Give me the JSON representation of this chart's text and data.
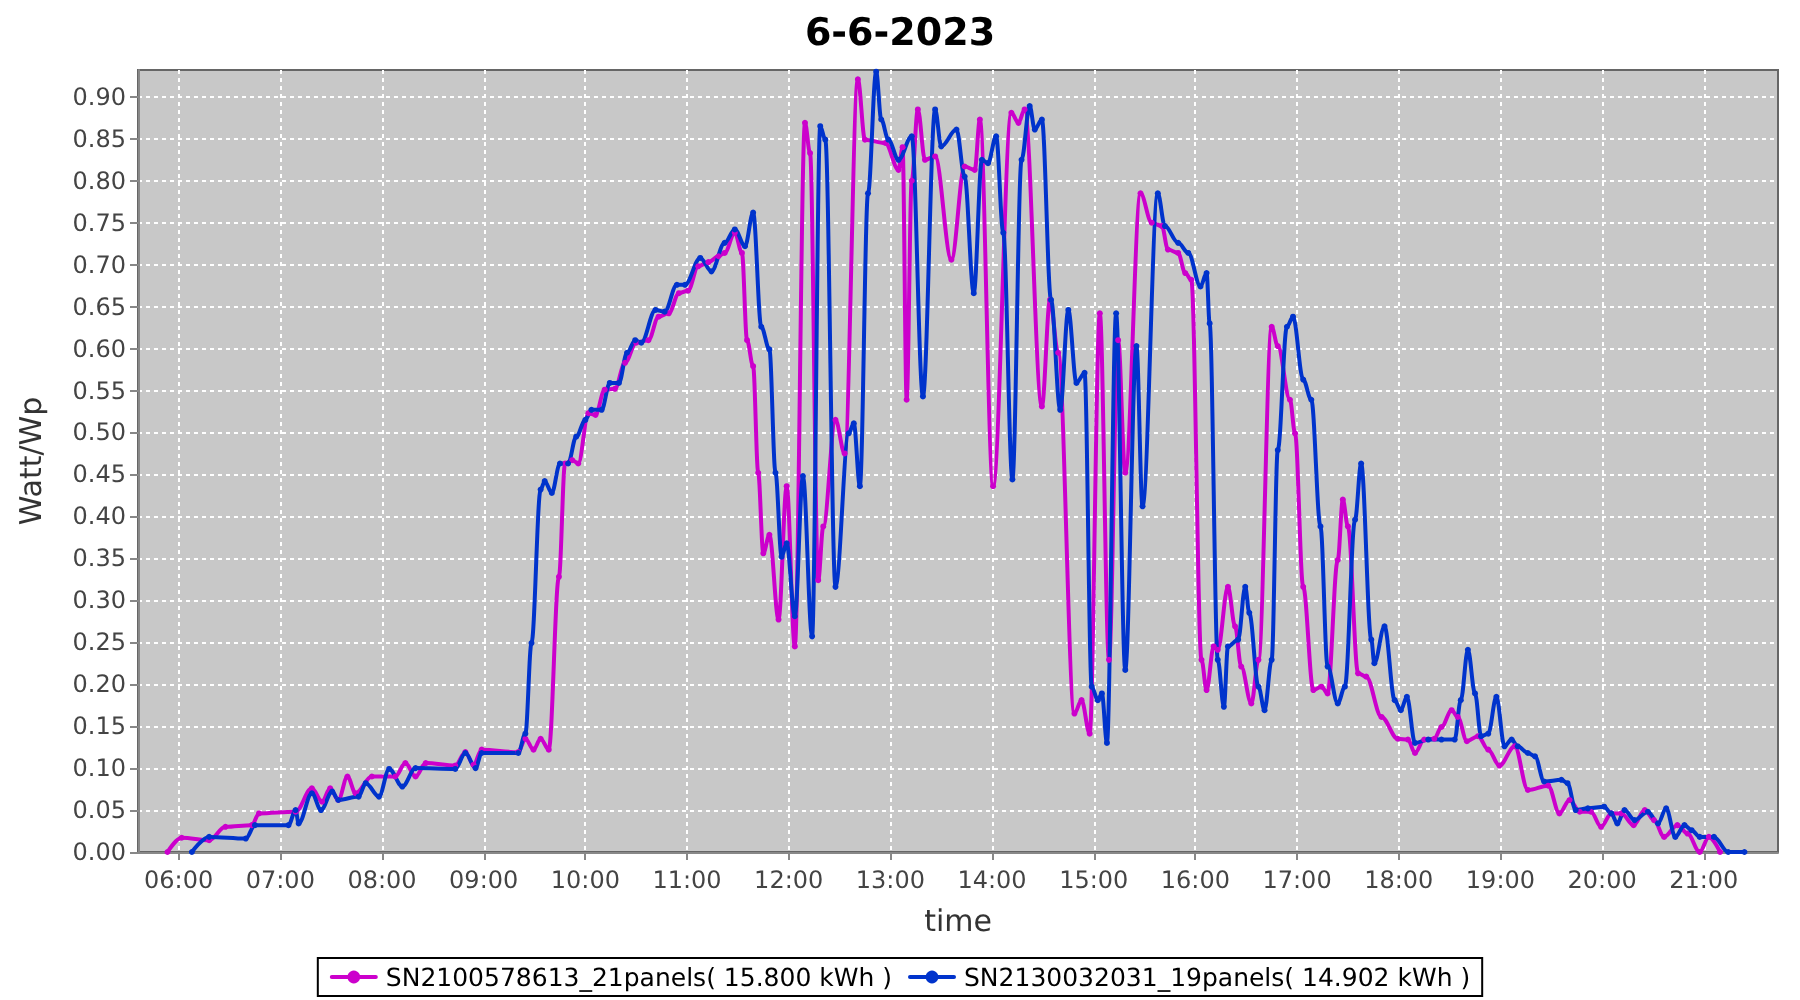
{
  "chart_data": {
    "type": "line",
    "title": "6-6-2023",
    "xlabel": "time",
    "ylabel": "Watt/Wp",
    "xlim": [
      5.6,
      21.73
    ],
    "xticks": [
      {
        "value": 6,
        "label": "06:00"
      },
      {
        "value": 7,
        "label": "07:00"
      },
      {
        "value": 8,
        "label": "08:00"
      },
      {
        "value": 9,
        "label": "09:00"
      },
      {
        "value": 10,
        "label": "10:00"
      },
      {
        "value": 11,
        "label": "11:00"
      },
      {
        "value": 12,
        "label": "12:00"
      },
      {
        "value": 13,
        "label": "13:00"
      },
      {
        "value": 14,
        "label": "14:00"
      },
      {
        "value": 15,
        "label": "15:00"
      },
      {
        "value": 16,
        "label": "16:00"
      },
      {
        "value": 17,
        "label": "17:00"
      },
      {
        "value": 18,
        "label": "18:00"
      },
      {
        "value": 19,
        "label": "19:00"
      },
      {
        "value": 20,
        "label": "20:00"
      },
      {
        "value": 21,
        "label": "21:00"
      }
    ],
    "ylim": [
      0,
      0.932
    ],
    "yticks": [
      {
        "value": 0,
        "label": "0.00"
      },
      0.05,
      {
        "value": 0.1,
        "label": "0.10"
      },
      0.15,
      {
        "value": 0.2,
        "label": "0.20"
      },
      0.25,
      {
        "value": 0.3,
        "label": "0.30"
      },
      0.35,
      {
        "value": 0.4,
        "label": "0.40"
      },
      0.45,
      {
        "value": 0.5,
        "label": "0.50"
      },
      0.55,
      {
        "value": 0.6,
        "label": "0.60"
      },
      0.65,
      {
        "value": 0.7,
        "label": "0.70"
      },
      0.75,
      {
        "value": 0.8,
        "label": "0.80"
      },
      0.85,
      {
        "value": 0.9,
        "label": "0.90"
      }
    ],
    "grid": true,
    "legend": "bottom",
    "marker": "circle",
    "line_style": "solid",
    "series": [
      {
        "name": "SN2100578613_21panels( 15.800 kWh )",
        "color": "#cc00cc",
        "x": [
          5.89,
          6.03,
          6.3,
          6.46,
          6.72,
          6.79,
          7.15,
          7.31,
          7.41,
          7.49,
          7.57,
          7.66,
          7.74,
          7.9,
          8.13,
          8.23,
          8.33,
          8.43,
          8.72,
          8.82,
          8.9,
          8.98,
          9.34,
          9.41,
          9.49,
          9.56,
          9.64,
          9.74,
          9.8,
          9.87,
          9.93,
          10.03,
          10.1,
          10.19,
          10.29,
          10.39,
          10.5,
          10.62,
          10.72,
          10.82,
          10.92,
          11.01,
          11.11,
          11.21,
          11.31,
          11.37,
          11.47,
          11.54,
          11.59,
          11.65,
          11.7,
          11.75,
          11.81,
          11.9,
          11.98,
          12.06,
          12.16,
          12.21,
          12.29,
          12.34,
          12.46,
          12.55,
          12.68,
          12.75,
          12.95,
          13.08,
          13.12,
          13.16,
          13.21,
          13.27,
          13.34,
          13.44,
          13.6,
          13.73,
          13.83,
          13.88,
          14.01,
          14.19,
          14.26,
          14.32,
          14.49,
          14.57,
          14.65,
          14.81,
          14.88,
          14.96,
          15.06,
          15.15,
          15.24,
          15.31,
          15.46,
          15.57,
          15.67,
          15.73,
          15.83,
          15.9,
          15.96,
          16.06,
          16.11,
          16.18,
          16.22,
          16.32,
          16.39,
          16.45,
          16.55,
          16.62,
          16.75,
          16.81,
          16.93,
          16.98,
          17.06,
          17.16,
          17.24,
          17.3,
          17.4,
          17.45,
          17.5,
          17.6,
          17.68,
          17.83,
          17.99,
          18.09,
          18.16,
          18.25,
          18.35,
          18.42,
          18.52,
          18.58,
          18.67,
          18.78,
          18.88,
          18.99,
          19.14,
          19.27,
          19.47,
          19.58,
          19.68,
          19.78,
          19.89,
          19.99,
          20.09,
          20.19,
          20.31,
          20.42,
          20.51,
          20.61,
          20.74,
          20.84,
          20.96,
          21.05,
          21.16
        ],
        "values": [
          0,
          0.017,
          0.014,
          0.03,
          0.032,
          0.046,
          0.048,
          0.076,
          0.06,
          0.076,
          0.062,
          0.09,
          0.07,
          0.09,
          0.09,
          0.106,
          0.09,
          0.106,
          0.103,
          0.119,
          0.104,
          0.122,
          0.119,
          0.135,
          0.122,
          0.135,
          0.122,
          0.328,
          0.463,
          0.467,
          0.463,
          0.523,
          0.521,
          0.551,
          0.552,
          0.583,
          0.607,
          0.61,
          0.638,
          0.642,
          0.666,
          0.669,
          0.698,
          0.703,
          0.71,
          0.714,
          0.738,
          0.714,
          0.61,
          0.579,
          0.452,
          0.356,
          0.378,
          0.277,
          0.436,
          0.245,
          0.869,
          0.833,
          0.324,
          0.388,
          0.515,
          0.475,
          0.921,
          0.849,
          0.845,
          0.813,
          0.84,
          0.539,
          0.8,
          0.885,
          0.825,
          0.829,
          0.706,
          0.817,
          0.813,
          0.873,
          0.436,
          0.881,
          0.869,
          0.885,
          0.531,
          0.658,
          0.595,
          0.165,
          0.181,
          0.141,
          0.642,
          0.229,
          0.61,
          0.452,
          0.785,
          0.75,
          0.746,
          0.718,
          0.714,
          0.69,
          0.682,
          0.229,
          0.193,
          0.245,
          0.241,
          0.316,
          0.269,
          0.221,
          0.177,
          0.229,
          0.626,
          0.603,
          0.539,
          0.499,
          0.316,
          0.193,
          0.197,
          0.189,
          0.348,
          0.42,
          0.388,
          0.213,
          0.209,
          0.161,
          0.135,
          0.134,
          0.118,
          0.134,
          0.135,
          0.149,
          0.169,
          0.161,
          0.132,
          0.138,
          0.122,
          0.103,
          0.126,
          0.074,
          0.079,
          0.046,
          0.062,
          0.048,
          0.048,
          0.03,
          0.046,
          0.046,
          0.032,
          0.05,
          0.038,
          0.018,
          0.032,
          0.022,
          0,
          0.018,
          0
        ]
      },
      {
        "name": "SN2130032031_19panels( 14.902 kWh )",
        "color": "#0033cc",
        "x": [
          6.13,
          6.3,
          6.66,
          6.75,
          7.08,
          7.15,
          7.18,
          7.31,
          7.4,
          7.51,
          7.57,
          7.77,
          7.84,
          7.97,
          8.07,
          8.2,
          8.33,
          8.72,
          8.82,
          8.92,
          8.98,
          9.34,
          9.41,
          9.47,
          9.56,
          9.6,
          9.67,
          9.75,
          9.83,
          9.91,
          10.0,
          10.06,
          10.16,
          10.24,
          10.33,
          10.41,
          10.49,
          10.55,
          10.69,
          10.78,
          10.9,
          10.98,
          11.13,
          11.24,
          11.37,
          11.47,
          11.57,
          11.65,
          11.73,
          11.81,
          11.87,
          11.93,
          11.98,
          12.06,
          12.14,
          12.23,
          12.31,
          12.36,
          12.46,
          12.59,
          12.64,
          12.7,
          12.78,
          12.86,
          12.91,
          12.98,
          13.08,
          13.21,
          13.32,
          13.44,
          13.5,
          13.65,
          13.73,
          13.82,
          13.9,
          13.96,
          14.04,
          14.11,
          14.2,
          14.29,
          14.37,
          14.42,
          14.49,
          14.58,
          14.67,
          14.75,
          14.83,
          14.91,
          14.98,
          15.04,
          15.08,
          15.13,
          15.22,
          15.31,
          15.42,
          15.48,
          15.63,
          15.7,
          15.83,
          15.93,
          16.05,
          16.11,
          16.14,
          16.22,
          16.28,
          16.32,
          16.42,
          16.49,
          16.53,
          16.62,
          16.68,
          16.75,
          16.81,
          16.9,
          16.96,
          17.06,
          17.14,
          17.23,
          17.3,
          17.4,
          17.47,
          17.57,
          17.63,
          17.73,
          17.76,
          17.86,
          17.96,
          18.02,
          18.08,
          18.16,
          18.29,
          18.42,
          18.55,
          18.61,
          18.68,
          18.75,
          18.81,
          18.88,
          18.96,
          19.04,
          19.11,
          19.17,
          19.27,
          19.34,
          19.43,
          19.6,
          19.66,
          19.74,
          19.86,
          20.02,
          20.09,
          20.15,
          20.22,
          20.32,
          20.45,
          20.55,
          20.63,
          20.72,
          20.81,
          20.88,
          20.96,
          21.1,
          21.24,
          21.4
        ],
        "values": [
          0,
          0.018,
          0.016,
          0.032,
          0.032,
          0.05,
          0.034,
          0.07,
          0.05,
          0.072,
          0.062,
          0.066,
          0.082,
          0.066,
          0.099,
          0.078,
          0.1,
          0.099,
          0.118,
          0.1,
          0.118,
          0.118,
          0.141,
          0.249,
          0.432,
          0.442,
          0.428,
          0.463,
          0.463,
          0.495,
          0.515,
          0.527,
          0.527,
          0.559,
          0.559,
          0.595,
          0.61,
          0.607,
          0.646,
          0.644,
          0.676,
          0.676,
          0.708,
          0.692,
          0.726,
          0.742,
          0.722,
          0.762,
          0.626,
          0.599,
          0.452,
          0.352,
          0.368,
          0.281,
          0.448,
          0.257,
          0.865,
          0.849,
          0.316,
          0.499,
          0.511,
          0.436,
          0.785,
          0.93,
          0.873,
          0.849,
          0.825,
          0.853,
          0.543,
          0.885,
          0.841,
          0.861,
          0.805,
          0.666,
          0.825,
          0.821,
          0.853,
          0.738,
          0.444,
          0.825,
          0.889,
          0.861,
          0.873,
          0.658,
          0.527,
          0.646,
          0.559,
          0.571,
          0.197,
          0.181,
          0.189,
          0.13,
          0.642,
          0.217,
          0.603,
          0.412,
          0.785,
          0.746,
          0.726,
          0.714,
          0.674,
          0.69,
          0.63,
          0.229,
          0.173,
          0.245,
          0.253,
          0.316,
          0.285,
          0.197,
          0.169,
          0.229,
          0.479,
          0.626,
          0.638,
          0.563,
          0.539,
          0.388,
          0.221,
          0.177,
          0.197,
          0.396,
          0.463,
          0.253,
          0.225,
          0.269,
          0.181,
          0.169,
          0.185,
          0.13,
          0.134,
          0.134,
          0.134,
          0.181,
          0.241,
          0.189,
          0.138,
          0.141,
          0.185,
          0.126,
          0.134,
          0.126,
          0.118,
          0.114,
          0.084,
          0.086,
          0.082,
          0.05,
          0.052,
          0.054,
          0.046,
          0.034,
          0.05,
          0.038,
          0.048,
          0.034,
          0.052,
          0.018,
          0.032,
          0.026,
          0.018,
          0.018,
          0,
          0
        ]
      }
    ]
  }
}
